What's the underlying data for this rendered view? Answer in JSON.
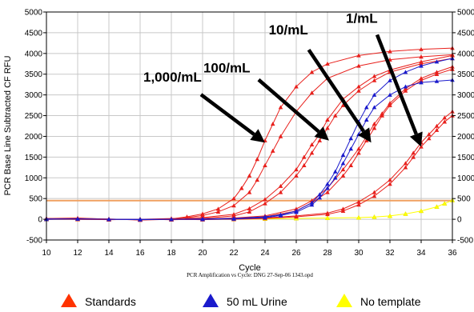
{
  "chart_data": {
    "type": "line",
    "ylabel": "PCR Base Line Subtracted CF RFU",
    "xlabel": "Cycle",
    "caption": "PCR Amplification vs Cycle: DNG 27-Sep-06 1343.opd",
    "xlim": [
      10,
      36
    ],
    "ylim": [
      -500,
      5000
    ],
    "xticks": [
      10,
      12,
      14,
      16,
      18,
      20,
      22,
      24,
      26,
      28,
      30,
      32,
      34,
      36
    ],
    "yticks": [
      -500,
      0,
      500,
      1000,
      1500,
      2000,
      2500,
      3000,
      3500,
      4000,
      4500,
      5000
    ],
    "grid": true,
    "threshold": 450,
    "threshold_color": "#f0a060",
    "annotations": [
      {
        "text": "1,000/mL",
        "x": 24.0,
        "y": 1850
      },
      {
        "text": "100/mL",
        "x": 28.1,
        "y": 1900
      },
      {
        "text": "10/mL",
        "x": 30.8,
        "y": 1850
      },
      {
        "text": "1/mL",
        "x": 34.0,
        "y": 1750
      }
    ],
    "legend": {
      "placement": "bottom",
      "entries": [
        {
          "label": "Standards",
          "color": "#ff3300"
        },
        {
          "label": "50 mL Urine",
          "color": "#1a1acc"
        },
        {
          "label": "No template",
          "color": "#ffff00"
        }
      ]
    },
    "series": [
      {
        "group": "Standards",
        "color": "#e8201c",
        "x": [
          10,
          12,
          14,
          16,
          18,
          19,
          20,
          21,
          22,
          22.5,
          23,
          23.5,
          24,
          24.5,
          25,
          26,
          27,
          28,
          30,
          32,
          34,
          36
        ],
        "y": [
          20,
          30,
          0,
          -10,
          10,
          60,
          130,
          250,
          500,
          750,
          1050,
          1450,
          1900,
          2300,
          2700,
          3200,
          3550,
          3750,
          3950,
          4050,
          4100,
          4130
        ]
      },
      {
        "group": "Standards",
        "color": "#e8201c",
        "x": [
          10,
          12,
          14,
          16,
          18,
          19,
          20,
          21,
          22,
          23,
          23.5,
          24,
          24.5,
          25,
          26,
          27,
          28,
          30,
          32,
          34,
          36
        ],
        "y": [
          20,
          20,
          10,
          -20,
          0,
          40,
          90,
          180,
          330,
          650,
          950,
          1300,
          1650,
          2000,
          2600,
          3050,
          3400,
          3700,
          3850,
          3920,
          3970
        ]
      },
      {
        "group": "Standards",
        "color": "#e8201c",
        "x": [
          10,
          12,
          14,
          16,
          18,
          20,
          22,
          23,
          24,
          25,
          26,
          26.5,
          27,
          27.5,
          28,
          28.5,
          29,
          30,
          31,
          32,
          34,
          36
        ],
        "y": [
          0,
          10,
          0,
          -10,
          0,
          20,
          80,
          180,
          380,
          650,
          1050,
          1300,
          1600,
          1900,
          2200,
          2500,
          2750,
          3100,
          3350,
          3550,
          3750,
          3880
        ]
      },
      {
        "group": "Standards",
        "color": "#e8201c",
        "x": [
          10,
          12,
          14,
          16,
          18,
          20,
          22,
          23,
          24,
          25,
          26,
          26.5,
          27,
          27.5,
          28,
          29,
          30,
          31,
          32,
          34,
          36
        ],
        "y": [
          10,
          20,
          -10,
          0,
          20,
          40,
          120,
          260,
          480,
          800,
          1200,
          1500,
          1800,
          2050,
          2400,
          2900,
          3200,
          3450,
          3600,
          3800,
          3950
        ]
      },
      {
        "group": "Standards",
        "color": "#e8201c",
        "x": [
          10,
          12,
          14,
          16,
          18,
          20,
          22,
          24,
          26,
          27,
          28,
          29,
          29.5,
          30,
          30.5,
          31,
          31.5,
          32,
          33,
          34,
          35,
          36
        ],
        "y": [
          0,
          0,
          0,
          0,
          -10,
          0,
          20,
          60,
          200,
          400,
          650,
          1050,
          1300,
          1600,
          1900,
          2200,
          2500,
          2750,
          3100,
          3350,
          3500,
          3620
        ]
      },
      {
        "group": "Standards",
        "color": "#e8201c",
        "x": [
          10,
          12,
          14,
          16,
          18,
          20,
          22,
          24,
          26,
          27,
          28,
          29,
          30,
          30.5,
          31,
          31.5,
          32,
          33,
          34,
          35,
          36
        ],
        "y": [
          10,
          0,
          -10,
          0,
          0,
          10,
          30,
          80,
          250,
          450,
          750,
          1200,
          1700,
          2000,
          2300,
          2550,
          2800,
          3150,
          3400,
          3550,
          3680
        ]
      },
      {
        "group": "Standards",
        "color": "#e8201c",
        "x": [
          10,
          12,
          14,
          16,
          18,
          20,
          22,
          24,
          26,
          28,
          29,
          30,
          31,
          32,
          33,
          33.5,
          34,
          34.5,
          35,
          35.5,
          36
        ],
        "y": [
          0,
          0,
          0,
          -10,
          0,
          -10,
          10,
          30,
          80,
          150,
          250,
          420,
          650,
          950,
          1350,
          1600,
          1850,
          2050,
          2250,
          2450,
          2600
        ]
      },
      {
        "group": "Standards",
        "color": "#e8201c",
        "x": [
          10,
          12,
          14,
          16,
          18,
          20,
          22,
          24,
          26,
          28,
          29,
          30,
          31,
          32,
          33,
          33.5,
          34,
          34.5,
          35,
          35.5,
          36
        ],
        "y": [
          10,
          0,
          0,
          0,
          -10,
          0,
          0,
          20,
          60,
          120,
          200,
          350,
          560,
          850,
          1250,
          1500,
          1750,
          1950,
          2150,
          2350,
          2500
        ]
      },
      {
        "group": "50 mL Urine",
        "color": "#1a1acc",
        "x": [
          10,
          12,
          14,
          16,
          18,
          20,
          22,
          24,
          25,
          26,
          27,
          27.5,
          28,
          28.5,
          29,
          29.5,
          30,
          30.5,
          31,
          32,
          33,
          34,
          35,
          36
        ],
        "y": [
          10,
          10,
          0,
          0,
          0,
          10,
          20,
          60,
          110,
          200,
          400,
          600,
          850,
          1150,
          1550,
          1950,
          2350,
          2700,
          3000,
          3350,
          3550,
          3700,
          3800,
          3880
        ]
      },
      {
        "group": "50 mL Urine",
        "color": "#1a1acc",
        "x": [
          10,
          12,
          14,
          16,
          18,
          20,
          22,
          24,
          25,
          26,
          27,
          27.5,
          28,
          28.5,
          29,
          29.5,
          30,
          30.5,
          31,
          32,
          33,
          34,
          35,
          36
        ],
        "y": [
          0,
          10,
          0,
          -10,
          0,
          0,
          10,
          40,
          90,
          170,
          350,
          520,
          750,
          1000,
          1350,
          1700,
          2050,
          2400,
          2700,
          3000,
          3200,
          3300,
          3330,
          3360
        ]
      },
      {
        "group": "No template",
        "color": "#ffff00",
        "x": [
          10,
          12,
          14,
          16,
          18,
          20,
          22,
          24,
          26,
          28,
          30,
          31,
          32,
          33,
          34,
          35,
          35.5,
          36
        ],
        "y": [
          0,
          0,
          0,
          0,
          0,
          0,
          0,
          10,
          20,
          30,
          40,
          55,
          80,
          130,
          200,
          300,
          380,
          460
        ]
      }
    ]
  }
}
